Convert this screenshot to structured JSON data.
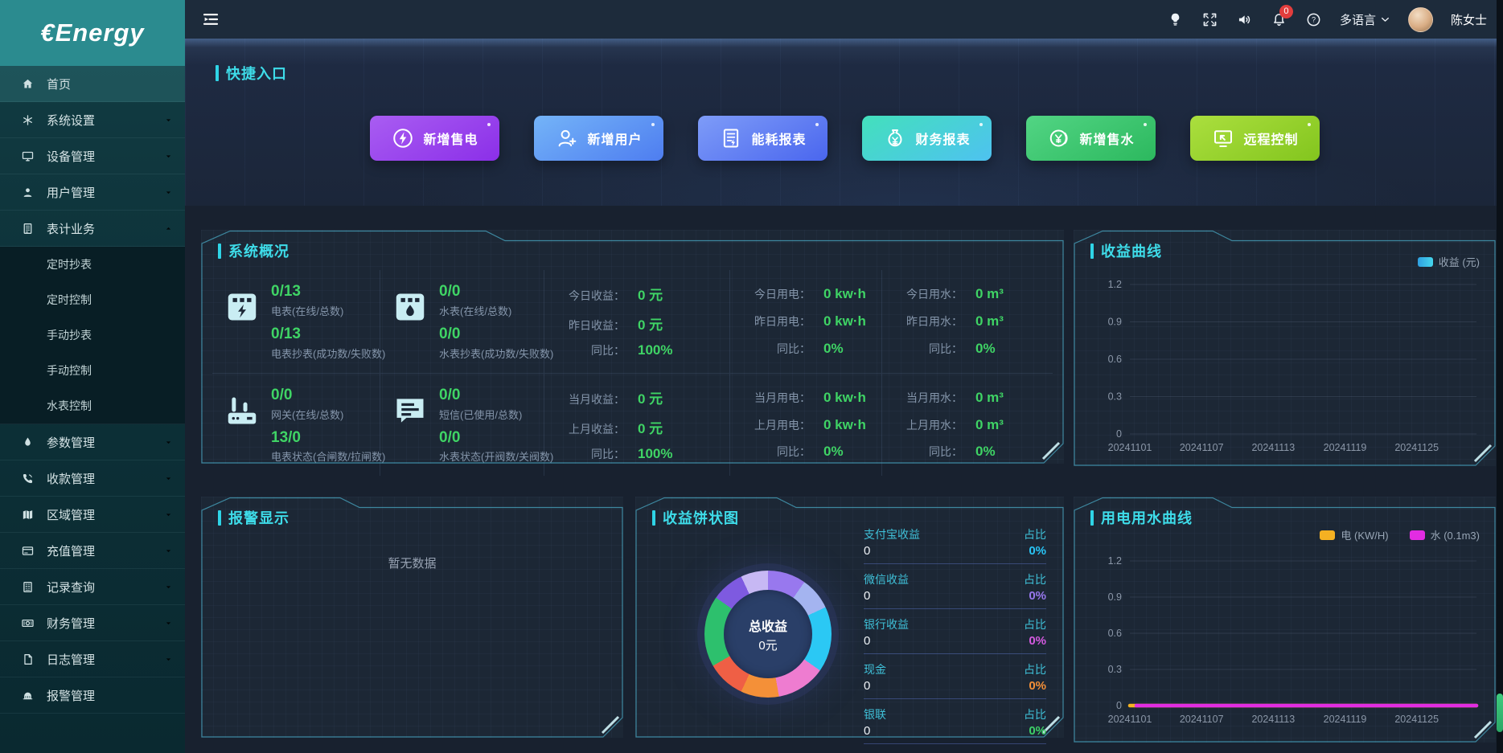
{
  "brand": {
    "logo": "€Energy"
  },
  "topbar": {
    "notification_badge": "0",
    "language": "多语言",
    "username": "陈女士"
  },
  "sidebar": {
    "items": [
      {
        "id": "home",
        "icon": "home",
        "label": "首页",
        "active": true,
        "expandable": false
      },
      {
        "id": "system-settings",
        "icon": "settings",
        "label": "系统设置",
        "expandable": true
      },
      {
        "id": "device-management",
        "icon": "device",
        "label": "设备管理",
        "expandable": true
      },
      {
        "id": "user-management",
        "icon": "user",
        "label": "用户管理",
        "expandable": true
      },
      {
        "id": "meter-business",
        "icon": "meter",
        "label": "表计业务",
        "expandable": true,
        "expanded": true,
        "children": [
          {
            "id": "scheduled-reading",
            "label": "定时抄表"
          },
          {
            "id": "scheduled-control",
            "label": "定时控制"
          },
          {
            "id": "manual-reading",
            "label": "手动抄表"
          },
          {
            "id": "manual-control",
            "label": "手动控制"
          },
          {
            "id": "water-meter-control",
            "label": "水表控制"
          }
        ]
      },
      {
        "id": "parameter-management",
        "icon": "param",
        "label": "参数管理",
        "expandable": true
      },
      {
        "id": "collection-management",
        "icon": "payment",
        "label": "收款管理",
        "expandable": true
      },
      {
        "id": "region-management",
        "icon": "region",
        "label": "区域管理",
        "expandable": true
      },
      {
        "id": "recharge-management",
        "icon": "recharge",
        "label": "充值管理",
        "expandable": true
      },
      {
        "id": "record-query",
        "icon": "records",
        "label": "记录查询",
        "expandable": true
      },
      {
        "id": "finance-management",
        "icon": "finance",
        "label": "财务管理",
        "expandable": true
      },
      {
        "id": "log-management",
        "icon": "logs",
        "label": "日志管理",
        "expandable": true
      },
      {
        "id": "alarm-management",
        "icon": "alarm",
        "label": "报警管理",
        "expandable": false
      }
    ]
  },
  "quick_entry": {
    "title": "快捷入口",
    "buttons": [
      {
        "id": "new-electric-sale",
        "label": "新增售电",
        "icon": "bolt-circle",
        "gradient": [
          "#a95df2",
          "#8b2fe8"
        ]
      },
      {
        "id": "new-user",
        "label": "新增用户",
        "icon": "user-plus",
        "gradient": [
          "#74b4f8",
          "#4e7df0"
        ]
      },
      {
        "id": "energy-report",
        "label": "能耗报表",
        "icon": "report",
        "gradient": [
          "#7e9cf8",
          "#4a66ee"
        ]
      },
      {
        "id": "finance-report",
        "label": "财务报表",
        "icon": "money-bag",
        "gradient": [
          "#43e0bc",
          "#4ec2f0"
        ]
      },
      {
        "id": "new-water-sale",
        "label": "新增售水",
        "icon": "coin-yen",
        "gradient": [
          "#52d584",
          "#2cb85e"
        ]
      },
      {
        "id": "remote-control",
        "label": "远程控制",
        "icon": "remote-screen",
        "gradient": [
          "#abdf3e",
          "#83c51e"
        ]
      }
    ]
  },
  "system_overview": {
    "title": "系统概况",
    "meters": [
      {
        "icon": "electric-meter",
        "stats": [
          {
            "value": "0/13",
            "label": "电表(在线/总数)"
          },
          {
            "value": "0/13",
            "label": "电表抄表(成功数/失败数)"
          }
        ]
      },
      {
        "icon": "water-meter",
        "stats": [
          {
            "value": "0/0",
            "label": "水表(在线/总数)"
          },
          {
            "value": "0/0",
            "label": "水表抄表(成功数/失败数)"
          }
        ]
      },
      {
        "icon": "gateway",
        "stats": [
          {
            "value": "0/0",
            "label": "网关(在线/总数)"
          },
          {
            "value": "13/0",
            "label": "电表状态(合闸数/拉闸数)"
          }
        ]
      },
      {
        "icon": "sms",
        "stats": [
          {
            "value": "0/0",
            "label": "短信(已使用/总数)"
          },
          {
            "value": "0/0",
            "label": "水表状态(开阀数/关阀数)"
          }
        ]
      }
    ],
    "stat_columns": [
      {
        "top": [
          {
            "label": "今日收益：",
            "value": "0 元"
          },
          {
            "label": "昨日收益：",
            "value": "0 元"
          },
          {
            "label": "同比：",
            "value": "100%"
          }
        ],
        "bottom": [
          {
            "label": "当月收益：",
            "value": "0 元"
          },
          {
            "label": "上月收益：",
            "value": "0 元"
          },
          {
            "label": "同比：",
            "value": "100%"
          }
        ]
      },
      {
        "top": [
          {
            "label": "今日用电：",
            "value": "0 kw·h"
          },
          {
            "label": "昨日用电：",
            "value": "0 kw·h"
          },
          {
            "label": "同比：",
            "value": "0%"
          }
        ],
        "bottom": [
          {
            "label": "当月用电：",
            "value": "0 kw·h"
          },
          {
            "label": "上月用电：",
            "value": "0 kw·h"
          },
          {
            "label": "同比：",
            "value": "0%"
          }
        ]
      },
      {
        "top": [
          {
            "label": "今日用水：",
            "value": "0 m³"
          },
          {
            "label": "昨日用水：",
            "value": "0 m³"
          },
          {
            "label": "同比：",
            "value": "0%"
          }
        ],
        "bottom": [
          {
            "label": "当月用水：",
            "value": "0 m³"
          },
          {
            "label": "上月用水：",
            "value": "0 m³"
          },
          {
            "label": "同比：",
            "value": "0%"
          }
        ]
      }
    ]
  },
  "revenue_panel": {
    "title": "收益曲线"
  },
  "alarm_panel": {
    "title": "报警显示",
    "empty_text": "暂无数据"
  },
  "pie_panel": {
    "title": "收益饼状图",
    "center_label": "总收益",
    "center_value": "0元",
    "ratio_label": "占比",
    "rows": [
      {
        "label": "支付宝收益",
        "value": "0",
        "percent": "0%",
        "color": "#29c5f6"
      },
      {
        "label": "微信收益",
        "value": "0",
        "percent": "0%",
        "color": "#9878ee"
      },
      {
        "label": "银行收益",
        "value": "0",
        "percent": "0%",
        "color": "#d45ae0"
      },
      {
        "label": "现金",
        "value": "0",
        "percent": "0%",
        "color": "#f49038"
      },
      {
        "label": "银联",
        "value": "0",
        "percent": "0%",
        "color": "#3dd168"
      }
    ]
  },
  "usage_panel": {
    "title": "用电用水曲线"
  },
  "chart_data": [
    {
      "type": "line",
      "title": "收益曲线",
      "ylim": [
        0,
        1.2
      ],
      "yticks": [
        0,
        0.3,
        0.6,
        0.9,
        1.2
      ],
      "x_ticks": [
        "20241101",
        "20241107",
        "20241113",
        "20241119",
        "20241125"
      ],
      "x_range": [
        "20241101",
        "20241130"
      ],
      "grid": true,
      "legend_position": "top-right",
      "series": [
        {
          "name": "收益 (元)",
          "color": "#35c2e8",
          "values": [
            0,
            0,
            0,
            0,
            0
          ],
          "note": "flat at 0 across entire date range"
        }
      ]
    },
    {
      "type": "line",
      "title": "用电用水曲线",
      "ylim": [
        0,
        1.2
      ],
      "yticks": [
        0,
        0.3,
        0.6,
        0.9,
        1.2
      ],
      "x_ticks": [
        "20241101",
        "20241107",
        "20241113",
        "20241119",
        "20241125"
      ],
      "x_range": [
        "20241101",
        "20241130"
      ],
      "grid": true,
      "legend_position": "top-right",
      "series": [
        {
          "name": "电 (KW/H)",
          "color": "#f5b122",
          "values": [
            0,
            0,
            0,
            0,
            0
          ]
        },
        {
          "name": "水 (0.1m3)",
          "color": "#e22ce2",
          "values": [
            0,
            0,
            0,
            0,
            0
          ]
        }
      ]
    },
    {
      "type": "pie",
      "title": "收益饼状图",
      "center_label": "总收益",
      "center_value": "0元",
      "slices": [
        {
          "name": "支付宝收益",
          "value": 0,
          "percent": "0%"
        },
        {
          "name": "微信收益",
          "value": 0,
          "percent": "0%"
        },
        {
          "name": "银行收益",
          "value": 0,
          "percent": "0%"
        },
        {
          "name": "现金",
          "value": 0,
          "percent": "0%"
        },
        {
          "name": "银联",
          "value": 0,
          "percent": "0%"
        }
      ],
      "ring_colors": [
        "#9878ee",
        "#a4b4f0",
        "#2bc8f4",
        "#ee7cd0",
        "#f49038",
        "#ef5f45",
        "#2dc06d",
        "#7e5ae0",
        "#c7b8f4"
      ]
    }
  ]
}
